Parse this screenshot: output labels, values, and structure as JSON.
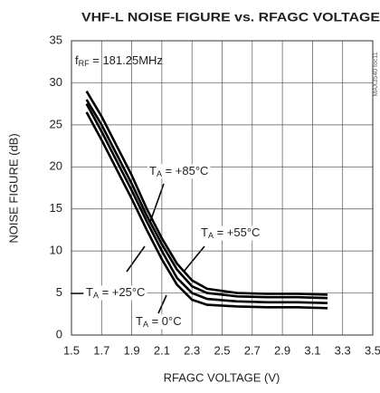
{
  "chart_data": {
    "type": "line",
    "title": "VHF-L NOISE FIGURE vs. RFAGC VOLTAGE",
    "side_note": "MAX3540 toc11",
    "x_label": "RFAGC VOLTAGE (V)",
    "y_label": "NOISE FIGURE (dB)",
    "x": [
      1.6,
      1.7,
      1.8,
      1.9,
      2.0,
      2.1,
      2.2,
      2.3,
      2.4,
      2.6,
      2.8,
      3.0,
      3.2
    ],
    "series": [
      {
        "color": "#000000",
        "values": [
          29,
          26,
          22.5,
          19,
          15,
          11.5,
          8.5,
          6.5,
          5.5,
          5.0,
          4.9,
          4.9,
          4.8
        ]
      },
      {
        "color": "#000000",
        "values": [
          28,
          25,
          21.5,
          18,
          14.2,
          10.8,
          7.8,
          5.8,
          5.0,
          4.6,
          4.5,
          4.5,
          4.4
        ]
      },
      {
        "color": "#000000",
        "values": [
          27.5,
          24.2,
          20.7,
          17.2,
          13.5,
          10.0,
          6.8,
          5.0,
          4.3,
          4.0,
          3.9,
          3.9,
          3.8
        ]
      },
      {
        "color": "#000000",
        "values": [
          26.5,
          23.2,
          19.7,
          16.2,
          12.5,
          9.0,
          6.0,
          4.2,
          3.6,
          3.4,
          3.3,
          3.3,
          3.2
        ]
      }
    ],
    "annotations": [
      {
        "main": "f",
        "sub": "RF",
        "rest": " = 181.25MHz"
      },
      {
        "main": "T",
        "sub": "A",
        "rest": " = +85°C"
      },
      {
        "main": "T",
        "sub": "A",
        "rest": " = +55°C"
      },
      {
        "main": "T",
        "sub": "A",
        "rest": " = +25°C"
      },
      {
        "main": "T",
        "sub": "A",
        "rest": " = 0°C"
      }
    ],
    "xlim": [
      1.5,
      3.5
    ],
    "xticks": [
      1.5,
      1.7,
      1.9,
      2.1,
      2.3,
      2.5,
      2.7,
      2.9,
      3.1,
      3.3,
      3.5
    ],
    "ylim": [
      0,
      35
    ],
    "yticks": [
      0,
      5,
      10,
      15,
      20,
      25,
      30,
      35
    ],
    "grid": true
  }
}
